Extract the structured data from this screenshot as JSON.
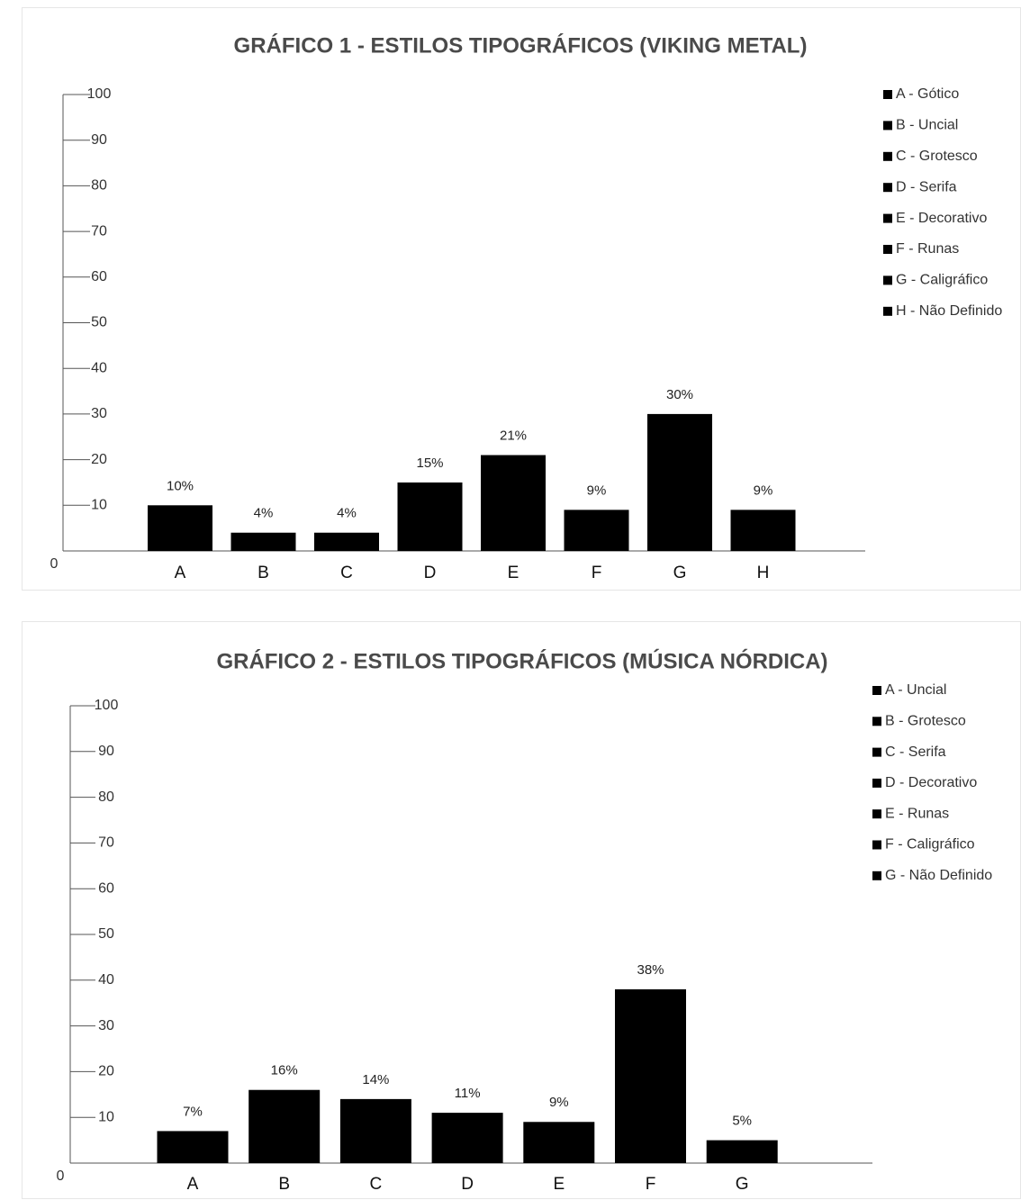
{
  "chart_data": [
    {
      "type": "bar",
      "title": "GRÁFICO 1 - ESTILOS TIPOGRÁFICOS (VIKING METAL)",
      "categories": [
        "A",
        "B",
        "C",
        "D",
        "E",
        "F",
        "G",
        "H"
      ],
      "values": [
        10,
        4,
        4,
        15,
        21,
        9,
        30,
        9
      ],
      "data_labels": [
        "10%",
        "4%",
        "4%",
        "15%",
        "21%",
        "9%",
        "30%",
        "9%"
      ],
      "yticks": [
        "0",
        "10",
        "20",
        "30",
        "40",
        "50",
        "60",
        "70",
        "80",
        "90",
        "100"
      ],
      "ylim": [
        0,
        100
      ],
      "xlabel": "",
      "ylabel": "",
      "grid": false,
      "legend_position": "right",
      "legend": [
        "A - Gótico",
        "B - Uncial",
        "C - Grotesco",
        "D - Serifa",
        "E - Decorativo",
        "F - Runas",
        "G - Caligráfico",
        "H - Não Definido"
      ],
      "bar_color": "#000000"
    },
    {
      "type": "bar",
      "title": "GRÁFICO 2 - ESTILOS TIPOGRÁFICOS (MÚSICA NÓRDICA)",
      "categories": [
        "A",
        "B",
        "C",
        "D",
        "E",
        "F",
        "G"
      ],
      "values": [
        7,
        16,
        14,
        11,
        9,
        38,
        5
      ],
      "data_labels": [
        "7%",
        "16%",
        "14%",
        "11%",
        "9%",
        "38%",
        "5%"
      ],
      "yticks": [
        "0",
        "10",
        "20",
        "30",
        "40",
        "50",
        "60",
        "70",
        "80",
        "90",
        "100"
      ],
      "ylim": [
        0,
        100
      ],
      "xlabel": "",
      "ylabel": "",
      "grid": false,
      "legend_position": "right",
      "legend": [
        "A - Uncial",
        "B - Grotesco",
        "C - Serifa",
        "D - Decorativo",
        "E - Runas",
        "F - Caligráfico",
        "G - Não Definido"
      ],
      "bar_color": "#000000"
    }
  ]
}
